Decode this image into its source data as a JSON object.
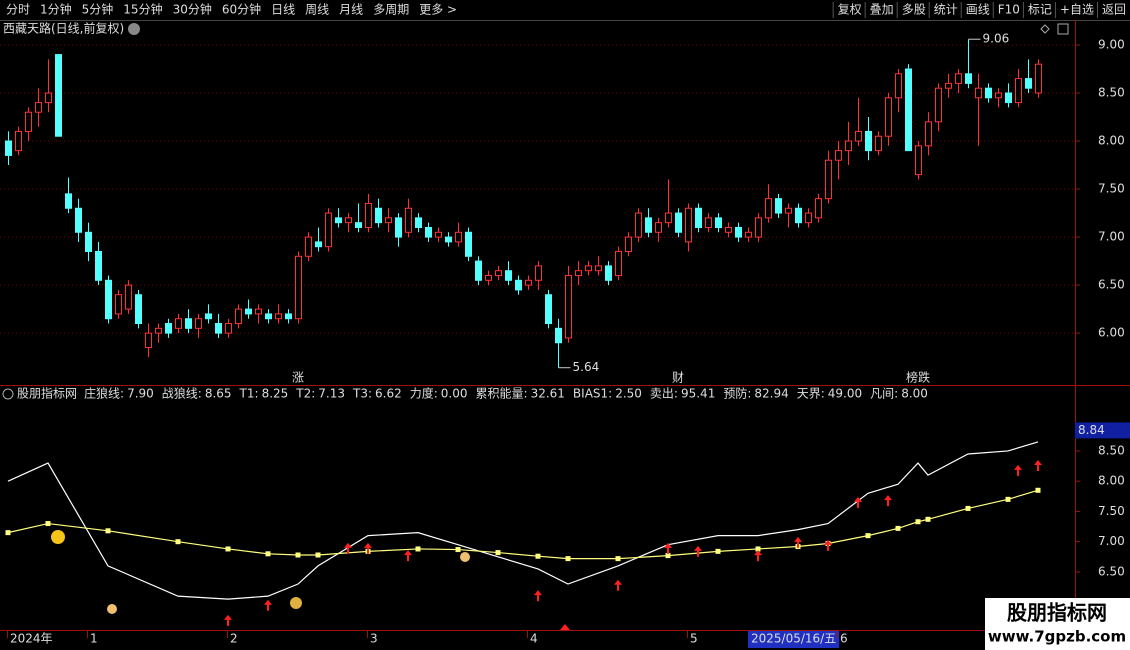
{
  "toolbar": {
    "left": [
      "分时",
      "1分钟",
      "5分钟",
      "15分钟",
      "30分钟",
      "60分钟",
      "日线",
      "周线",
      "月线",
      "多周期",
      "更多 >"
    ],
    "active_index": 6,
    "right": [
      "复权",
      "叠加",
      "多股",
      "统计",
      "画线",
      "F10",
      "标记",
      "+自选",
      "返回"
    ]
  },
  "watermark": {
    "title": "股朋指标网",
    "url": "www.7gpzb.com"
  },
  "chart_data": [
    {
      "type": "candlestick",
      "title": "西藏天路(日线,前复权)",
      "open": [
        8.0,
        7.9,
        8.1,
        8.3,
        8.4,
        8.9,
        7.45,
        7.3,
        7.05,
        6.85,
        6.55,
        6.2,
        6.25,
        6.4,
        5.85,
        6.0,
        6.1,
        6.05,
        6.15,
        6.05,
        6.2,
        6.1,
        6.0,
        6.1,
        6.25,
        6.2,
        6.2,
        6.15,
        6.2,
        6.15,
        6.8,
        6.95,
        6.9,
        7.2,
        7.15,
        7.15,
        7.1,
        7.3,
        7.15,
        7.2,
        7.05,
        7.2,
        7.1,
        7.0,
        7.0,
        6.95,
        7.05,
        6.75,
        6.55,
        6.6,
        6.65,
        6.55,
        6.5,
        6.55,
        6.4,
        6.05,
        5.95,
        6.6,
        6.65,
        6.65,
        6.7,
        6.6,
        6.85,
        7.0,
        7.2,
        7.05,
        7.15,
        7.25,
        6.95,
        7.3,
        7.1,
        7.2,
        7.05,
        7.1,
        7.0,
        7.0,
        7.2,
        7.4,
        7.25,
        7.3,
        7.15,
        7.2,
        7.4,
        7.8,
        7.9,
        8.0,
        8.1,
        7.9,
        8.05,
        8.45,
        8.75,
        7.65,
        7.95,
        8.2,
        8.55,
        8.6,
        8.7,
        8.45,
        8.55,
        8.45,
        8.5,
        8.4,
        8.65,
        8.5
      ],
      "high": [
        8.1,
        8.15,
        8.35,
        8.55,
        8.85,
        8.9,
        7.62,
        7.4,
        7.15,
        6.95,
        6.6,
        6.45,
        6.55,
        6.45,
        6.1,
        6.1,
        6.15,
        6.2,
        6.25,
        6.2,
        6.3,
        6.2,
        6.15,
        6.3,
        6.35,
        6.3,
        6.25,
        6.3,
        6.25,
        6.85,
        7.05,
        7.1,
        7.3,
        7.3,
        7.25,
        7.35,
        7.45,
        7.4,
        7.3,
        7.25,
        7.4,
        7.25,
        7.15,
        7.1,
        7.05,
        7.15,
        7.1,
        6.8,
        6.65,
        6.7,
        6.75,
        6.6,
        6.6,
        6.75,
        6.45,
        6.15,
        6.7,
        6.75,
        6.75,
        6.8,
        6.75,
        6.9,
        7.05,
        7.3,
        7.3,
        7.2,
        7.6,
        7.3,
        7.35,
        7.35,
        7.25,
        7.25,
        7.15,
        7.15,
        7.1,
        7.25,
        7.55,
        7.45,
        7.35,
        7.35,
        7.3,
        7.45,
        7.9,
        8.0,
        8.2,
        8.45,
        8.25,
        8.1,
        8.5,
        8.75,
        8.8,
        8.0,
        8.3,
        8.6,
        8.7,
        8.75,
        9.06,
        8.7,
        8.6,
        8.55,
        8.6,
        8.75,
        8.85,
        8.85
      ],
      "low": [
        7.75,
        7.85,
        8.0,
        8.15,
        8.3,
        8.05,
        7.25,
        6.95,
        6.75,
        6.5,
        6.1,
        6.15,
        6.2,
        6.05,
        5.75,
        5.9,
        5.95,
        6.0,
        6.0,
        5.95,
        6.1,
        5.95,
        5.95,
        6.05,
        6.15,
        6.1,
        6.1,
        6.1,
        6.1,
        6.1,
        6.75,
        6.85,
        6.85,
        7.1,
        7.05,
        7.05,
        7.05,
        7.1,
        7.05,
        6.9,
        7.0,
        7.05,
        6.95,
        6.95,
        6.9,
        6.9,
        6.75,
        6.5,
        6.5,
        6.55,
        6.5,
        6.4,
        6.45,
        6.45,
        6.05,
        5.64,
        5.9,
        6.5,
        6.6,
        6.6,
        6.5,
        6.55,
        6.8,
        6.95,
        7.0,
        6.95,
        7.1,
        7.0,
        6.85,
        7.05,
        7.05,
        7.05,
        7.0,
        6.95,
        6.95,
        6.95,
        7.15,
        7.2,
        7.1,
        7.1,
        7.1,
        7.15,
        7.35,
        7.6,
        7.75,
        7.95,
        7.8,
        7.85,
        7.95,
        8.3,
        7.9,
        7.6,
        7.85,
        8.1,
        8.45,
        8.5,
        8.55,
        7.95,
        8.4,
        8.35,
        8.35,
        8.35,
        8.5,
        8.45
      ],
      "close": [
        7.85,
        8.1,
        8.3,
        8.4,
        8.5,
        8.05,
        7.3,
        7.05,
        6.85,
        6.55,
        6.15,
        6.4,
        6.5,
        6.1,
        6.0,
        6.05,
        6.0,
        6.15,
        6.05,
        6.15,
        6.15,
        6.0,
        6.1,
        6.25,
        6.2,
        6.25,
        6.15,
        6.2,
        6.15,
        6.8,
        7.0,
        6.9,
        7.25,
        7.15,
        7.2,
        7.1,
        7.35,
        7.15,
        7.2,
        7.0,
        7.3,
        7.1,
        7.0,
        7.05,
        6.95,
        7.05,
        6.8,
        6.55,
        6.6,
        6.65,
        6.55,
        6.45,
        6.55,
        6.7,
        6.1,
        5.9,
        6.6,
        6.65,
        6.7,
        6.7,
        6.55,
        6.85,
        7.0,
        7.25,
        7.05,
        7.15,
        7.25,
        7.05,
        7.3,
        7.1,
        7.2,
        7.1,
        7.1,
        7.0,
        7.05,
        7.2,
        7.4,
        7.25,
        7.3,
        7.15,
        7.25,
        7.4,
        7.8,
        7.9,
        8.0,
        8.1,
        7.9,
        8.05,
        8.45,
        8.7,
        7.9,
        7.95,
        8.2,
        8.55,
        8.6,
        8.7,
        8.6,
        8.55,
        8.45,
        8.5,
        8.4,
        8.65,
        8.55,
        8.8
      ],
      "ylim": [
        5.46,
        9.26
      ],
      "yticks": [
        {
          "value": 9,
          "label": "9.00"
        },
        {
          "value": 8.5,
          "label": "8.50"
        },
        {
          "value": 8,
          "label": "8.00"
        },
        {
          "value": 7.5,
          "label": "7.50"
        },
        {
          "value": 7,
          "label": "7.00"
        },
        {
          "value": 6.5,
          "label": "6.50"
        },
        {
          "value": 6,
          "label": "6.00"
        }
      ],
      "grid": true,
      "up_color": "#ff3232",
      "down_color": "#54ffff",
      "annotations": [
        {
          "index": 96,
          "value": 9.06
        },
        {
          "index": 55,
          "value": 5.64
        }
      ],
      "events": [
        {
          "index": 29,
          "label": "涨",
          "color": "#ff3232"
        },
        {
          "index": 67,
          "label": "财",
          "color": "#4f9dff"
        },
        {
          "index": 91,
          "label": "榜跌",
          "color": "#ffff54"
        }
      ]
    },
    {
      "type": "line",
      "title": "股朋指标网",
      "legend_items": [
        {
          "label": "庄狼线:",
          "value": "7.90",
          "color": "#ffff54"
        },
        {
          "label": "战狼线:",
          "value": "8.65",
          "color": "#ffffff"
        },
        {
          "label": "T1:",
          "value": "8.25",
          "color": "#ffff54"
        },
        {
          "label": "T2:",
          "value": "7.13",
          "color": "#54ffff"
        },
        {
          "label": "T3:",
          "value": "6.62",
          "color": "#54ff54"
        },
        {
          "label": "力度:",
          "value": "0.00",
          "color": "#ff54ff"
        },
        {
          "label": "累积能量:",
          "value": "32.61",
          "color": "#54ff54"
        },
        {
          "label": "BIAS1:",
          "value": "2.50",
          "color": "#dddddd"
        },
        {
          "label": "卖出:",
          "value": "95.41",
          "color": "#ffff54"
        },
        {
          "label": "预防:",
          "value": "82.94",
          "color": "#ff3232"
        },
        {
          "label": "天界:",
          "value": "49.00",
          "color": "#54ffff"
        },
        {
          "label": "凡间:",
          "value": "8.00",
          "color": "#ff3232"
        }
      ],
      "x": [
        0,
        4,
        10,
        17,
        22,
        26,
        29,
        31,
        36,
        41,
        45,
        49,
        53,
        56,
        61,
        66,
        71,
        75,
        79,
        82,
        86,
        89,
        91,
        92,
        96,
        100,
        103
      ],
      "series": [
        {
          "color": "#ffffff",
          "values": [
            8.0,
            8.3,
            6.6,
            6.1,
            6.05,
            6.1,
            6.3,
            6.6,
            7.1,
            7.15,
            6.95,
            6.75,
            6.55,
            6.3,
            6.6,
            6.95,
            7.1,
            7.1,
            7.2,
            7.3,
            7.8,
            7.95,
            8.3,
            8.1,
            8.45,
            8.5,
            8.65
          ]
        },
        {
          "color": "#ffff80",
          "values": [
            7.15,
            7.3,
            7.18,
            7.0,
            6.88,
            6.8,
            6.78,
            6.78,
            6.84,
            6.88,
            6.87,
            6.82,
            6.76,
            6.72,
            6.72,
            6.77,
            6.84,
            6.88,
            6.92,
            6.97,
            7.1,
            7.22,
            7.33,
            7.37,
            7.55,
            7.7,
            7.85
          ],
          "markers": true
        }
      ],
      "signals": {
        "color": "#ff2020",
        "x": [
          22,
          26,
          34,
          36,
          40,
          53,
          61,
          66,
          69,
          75,
          79,
          82,
          85,
          88,
          101,
          103
        ],
        "y": [
          5.79,
          6.04,
          6.98,
          6.98,
          6.86,
          6.2,
          6.37,
          6.98,
          6.93,
          6.86,
          7.08,
          7.03,
          7.74,
          7.77,
          8.27,
          8.35
        ]
      },
      "ylim": [
        5.54,
        9.26
      ],
      "yticks": [
        {
          "value": 8.5,
          "label": "8.50"
        },
        {
          "value": 8,
          "label": "8.00"
        },
        {
          "value": 7.5,
          "label": "7.50"
        },
        {
          "value": 7,
          "label": "7.00"
        },
        {
          "value": 6.5,
          "label": "6.50"
        }
      ],
      "grid": false,
      "current_value": 8.84,
      "xticks": [
        {
          "value": 0,
          "label": "2024年"
        },
        {
          "value": 8,
          "label": "1"
        },
        {
          "value": 22,
          "label": "2"
        },
        {
          "value": 36,
          "label": "3"
        },
        {
          "value": 52,
          "label": "4"
        },
        {
          "value": 68,
          "label": "5"
        },
        {
          "value": 74,
          "label": "2025/05/16/五"
        },
        {
          "value": 83,
          "label": "6"
        }
      ],
      "active_xtick": 6
    }
  ]
}
